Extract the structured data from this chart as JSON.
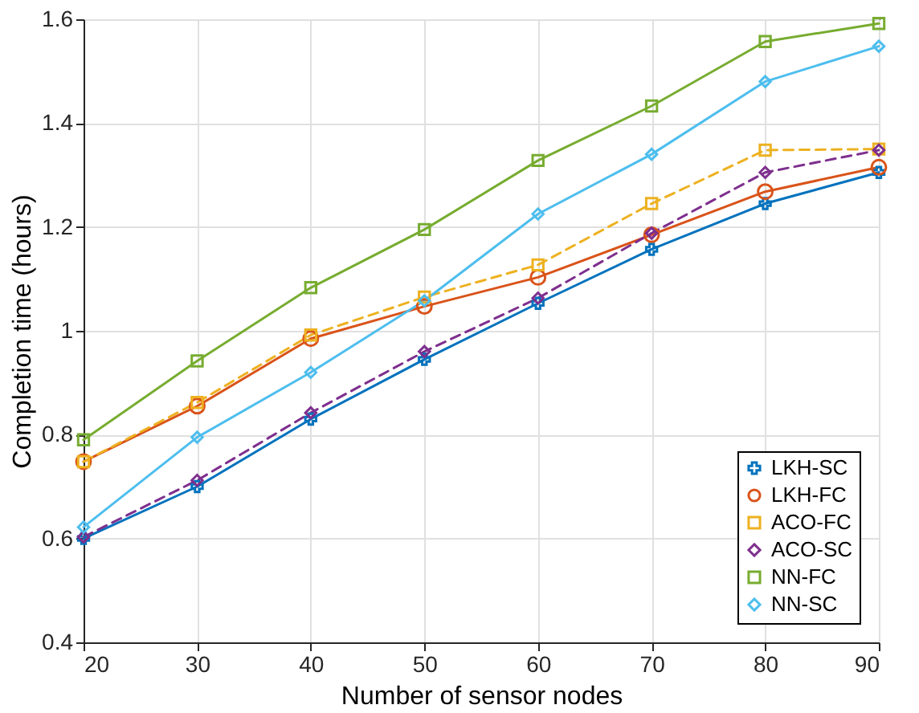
{
  "chart_data": {
    "type": "line",
    "xlabel": "Number of sensor nodes",
    "ylabel": "Completion time (hours)",
    "x": [
      20,
      30,
      40,
      50,
      60,
      70,
      80,
      90
    ],
    "xlim": [
      20,
      90
    ],
    "xticks": [
      20,
      30,
      40,
      50,
      60,
      70,
      80,
      90
    ],
    "ylim": [
      0.4,
      1.6
    ],
    "yticks": [
      0.4,
      0.6,
      0.8,
      1,
      1.2,
      1.4,
      1.6
    ],
    "grid": true,
    "legend": "bottom right",
    "series": [
      {
        "name": "LKH-SC",
        "color": "#0072bd",
        "marker": "cross",
        "line_style": "solid",
        "values": [
          0.6,
          0.7,
          0.83,
          0.945,
          1.053,
          1.157,
          1.245,
          1.305
        ]
      },
      {
        "name": "LKH-FC",
        "color": "#d95319",
        "marker": "circle",
        "line_style": "solid",
        "values": [
          0.748,
          0.855,
          0.985,
          1.047,
          1.103,
          1.185,
          1.268,
          1.315
        ]
      },
      {
        "name": "ACO-FC",
        "color": "#edb120",
        "marker": "square",
        "line_style": "dashed",
        "values": [
          0.748,
          0.862,
          0.992,
          1.065,
          1.127,
          1.245,
          1.348,
          1.35
        ]
      },
      {
        "name": "ACO-SC",
        "color": "#7e2f8e",
        "marker": "diamond",
        "line_style": "dashed",
        "values": [
          0.603,
          0.712,
          0.842,
          0.96,
          1.063,
          1.188,
          1.305,
          1.348
        ]
      },
      {
        "name": "NN-FC",
        "color": "#77ac30",
        "marker": "square",
        "line_style": "solid",
        "values": [
          0.79,
          0.942,
          1.083,
          1.195,
          1.328,
          1.433,
          1.557,
          1.592
        ]
      },
      {
        "name": "NN-SC",
        "color": "#4dbeee",
        "marker": "diamond",
        "line_style": "solid",
        "values": [
          0.622,
          0.795,
          0.92,
          1.058,
          1.225,
          1.34,
          1.48,
          1.548
        ]
      }
    ]
  }
}
